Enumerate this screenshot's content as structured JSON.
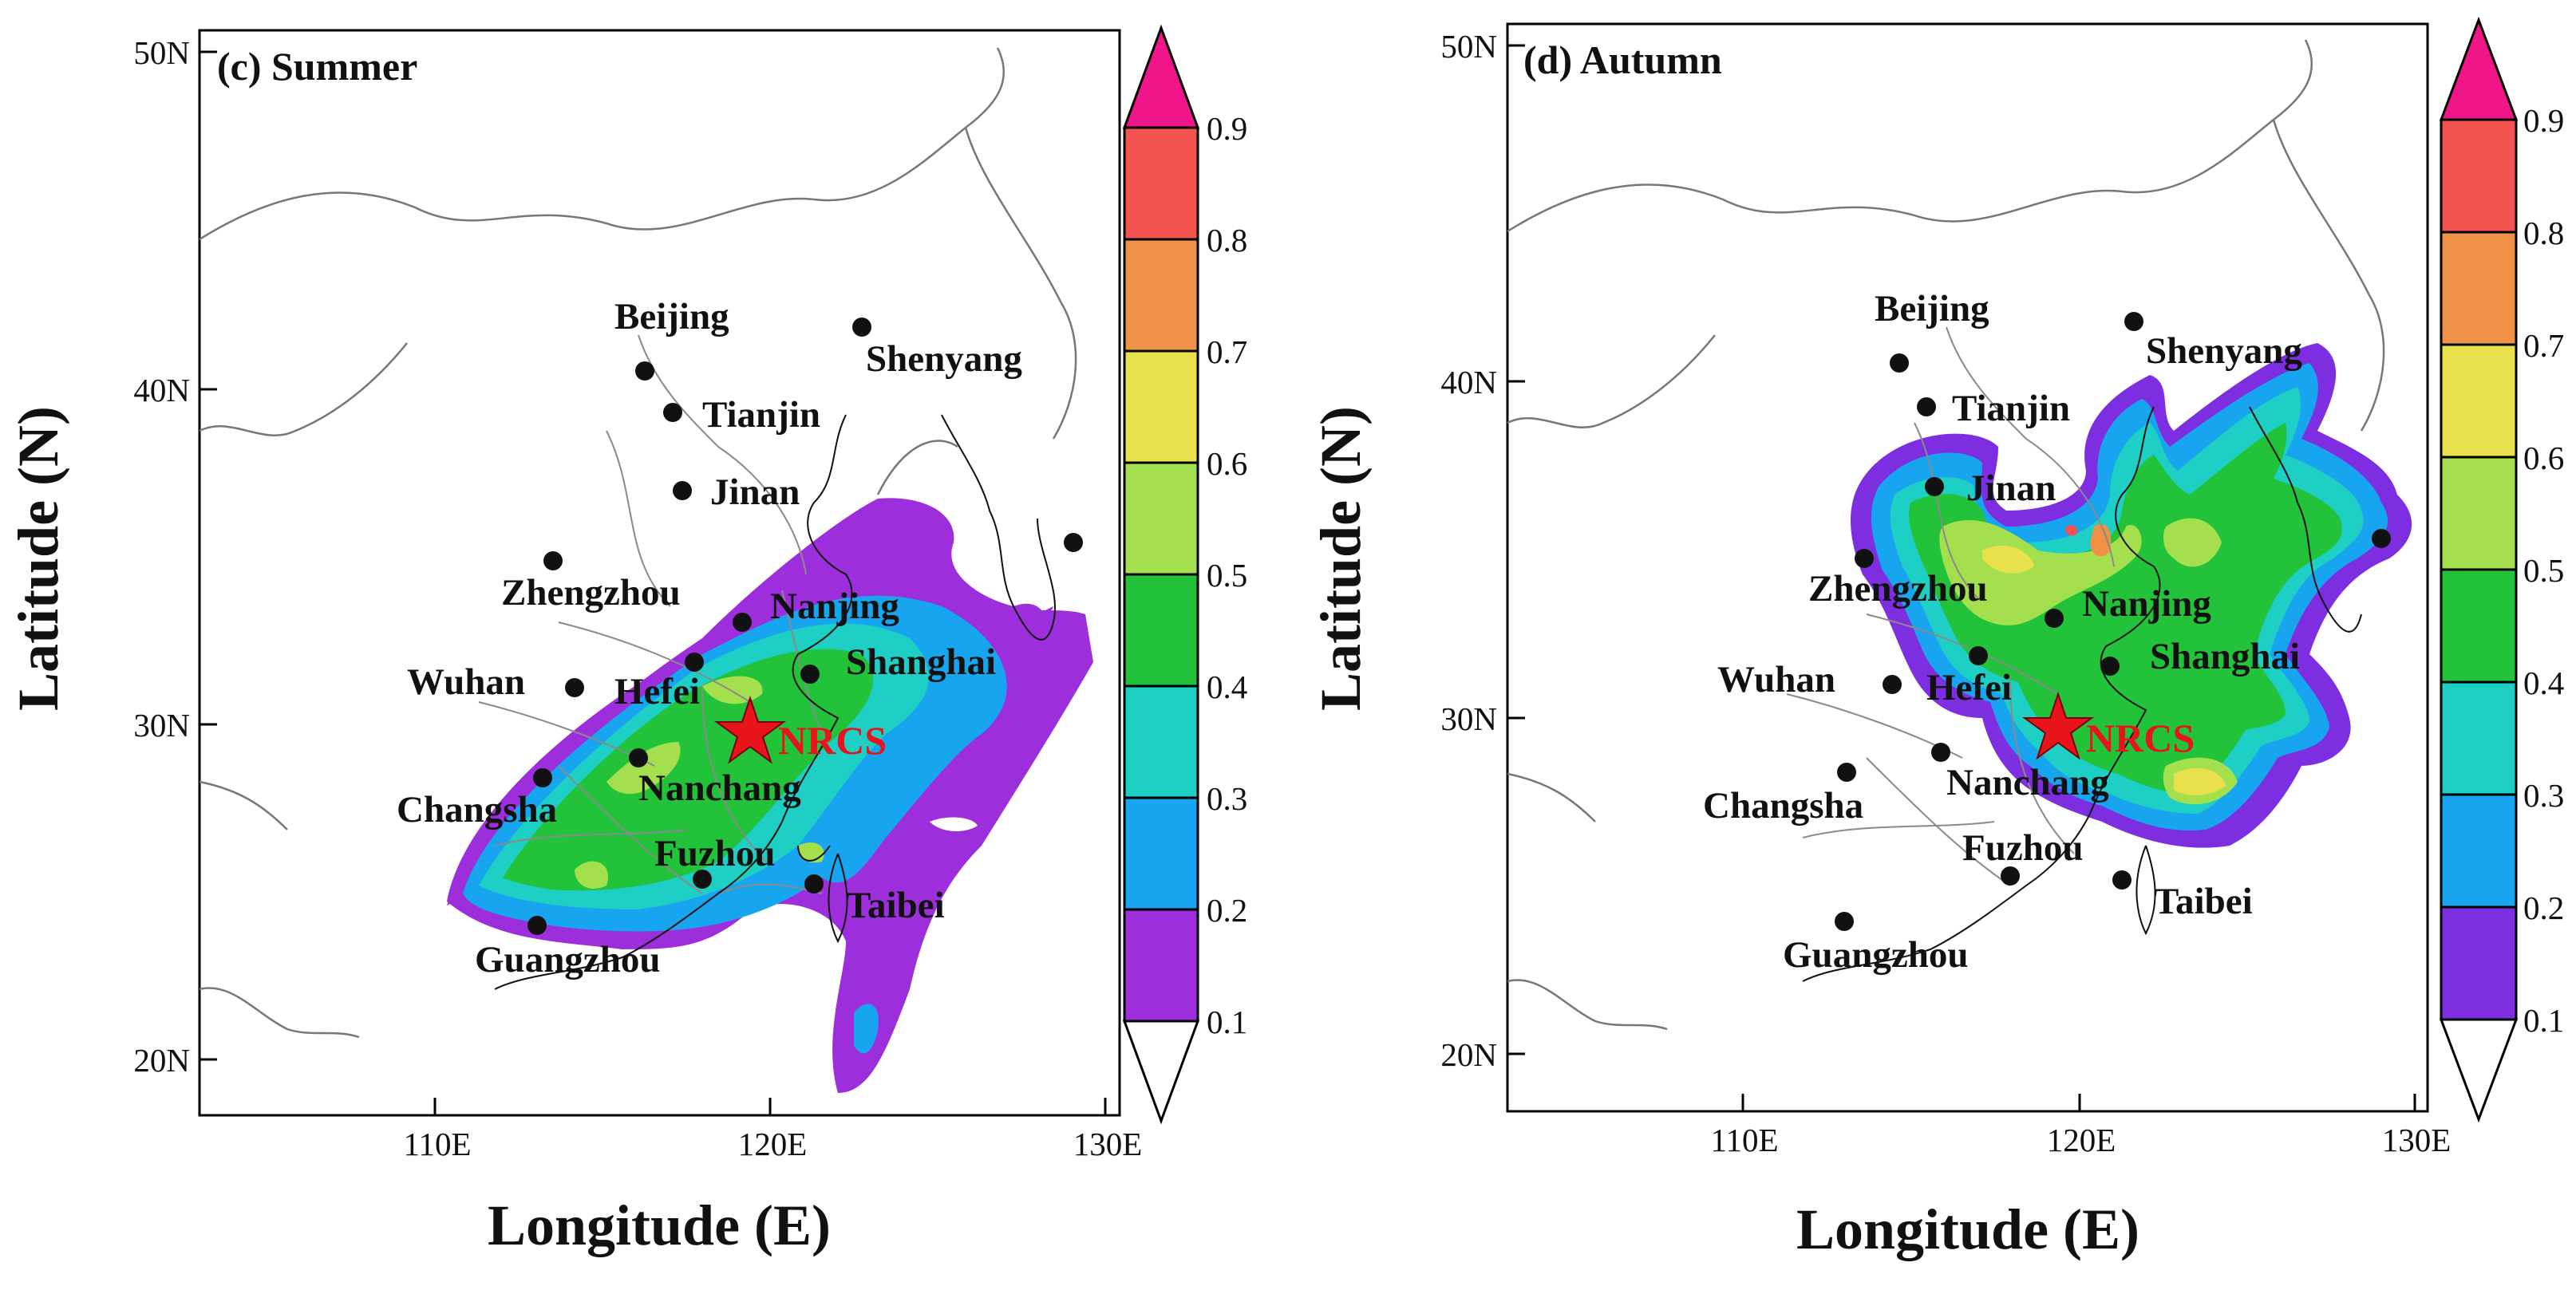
{
  "axes": {
    "x_label": "Longitude (E)",
    "y_label": "Latitude (N)"
  },
  "colors": {
    "bins": [
      "#ffffff",
      "#9d2edb",
      "#17a5f0",
      "#1dcfc4",
      "#22c33a",
      "#a4e04d",
      "#e9e04e",
      "#ef9146",
      "#f4534f",
      "#f0168a"
    ],
    "city_dot": "#111111",
    "site_marker": "#e8141c",
    "province_border": "#8a8a8a",
    "coastline": "#111111",
    "country_border": "#777777"
  },
  "panels": [
    {
      "id": "summer",
      "title": "(c) Summer",
      "x_ticks": [
        "110E",
        "120E",
        "130E"
      ],
      "y_ticks": [
        "50N",
        "40N",
        "30N",
        "20N"
      ],
      "colorbar_labels": [
        "0.9",
        "0.8",
        "0.7",
        "0.6",
        "0.5",
        "0.4",
        "0.3",
        "0.2",
        "0.1"
      ],
      "cities": [
        "Beijing",
        "Tianjin",
        "Shenyang",
        "Jinan",
        "Zhengzhou",
        "Nanjing",
        "Wuhan",
        "Hefei",
        "Shanghai",
        "Changsha",
        "Nanchang",
        "Fuzhou",
        "Taibei",
        "Guangzhou"
      ],
      "site": "NRCS"
    },
    {
      "id": "autumn",
      "title": "(d) Autumn",
      "x_ticks": [
        "110E",
        "120E",
        "130E"
      ],
      "y_ticks": [
        "50N",
        "40N",
        "30N",
        "20N"
      ],
      "colorbar_labels": [
        "0.9",
        "0.8",
        "0.7",
        "0.6",
        "0.5",
        "0.4",
        "0.3",
        "0.2",
        "0.1"
      ],
      "cities": [
        "Beijing",
        "Tianjin",
        "Shenyang",
        "Jinan",
        "Zhengzhou",
        "Nanjing",
        "Wuhan",
        "Hefei",
        "Shanghai",
        "Changsha",
        "Nanchang",
        "Fuzhou",
        "Taibei",
        "Guangzhou"
      ],
      "site": "NRCS"
    }
  ]
}
